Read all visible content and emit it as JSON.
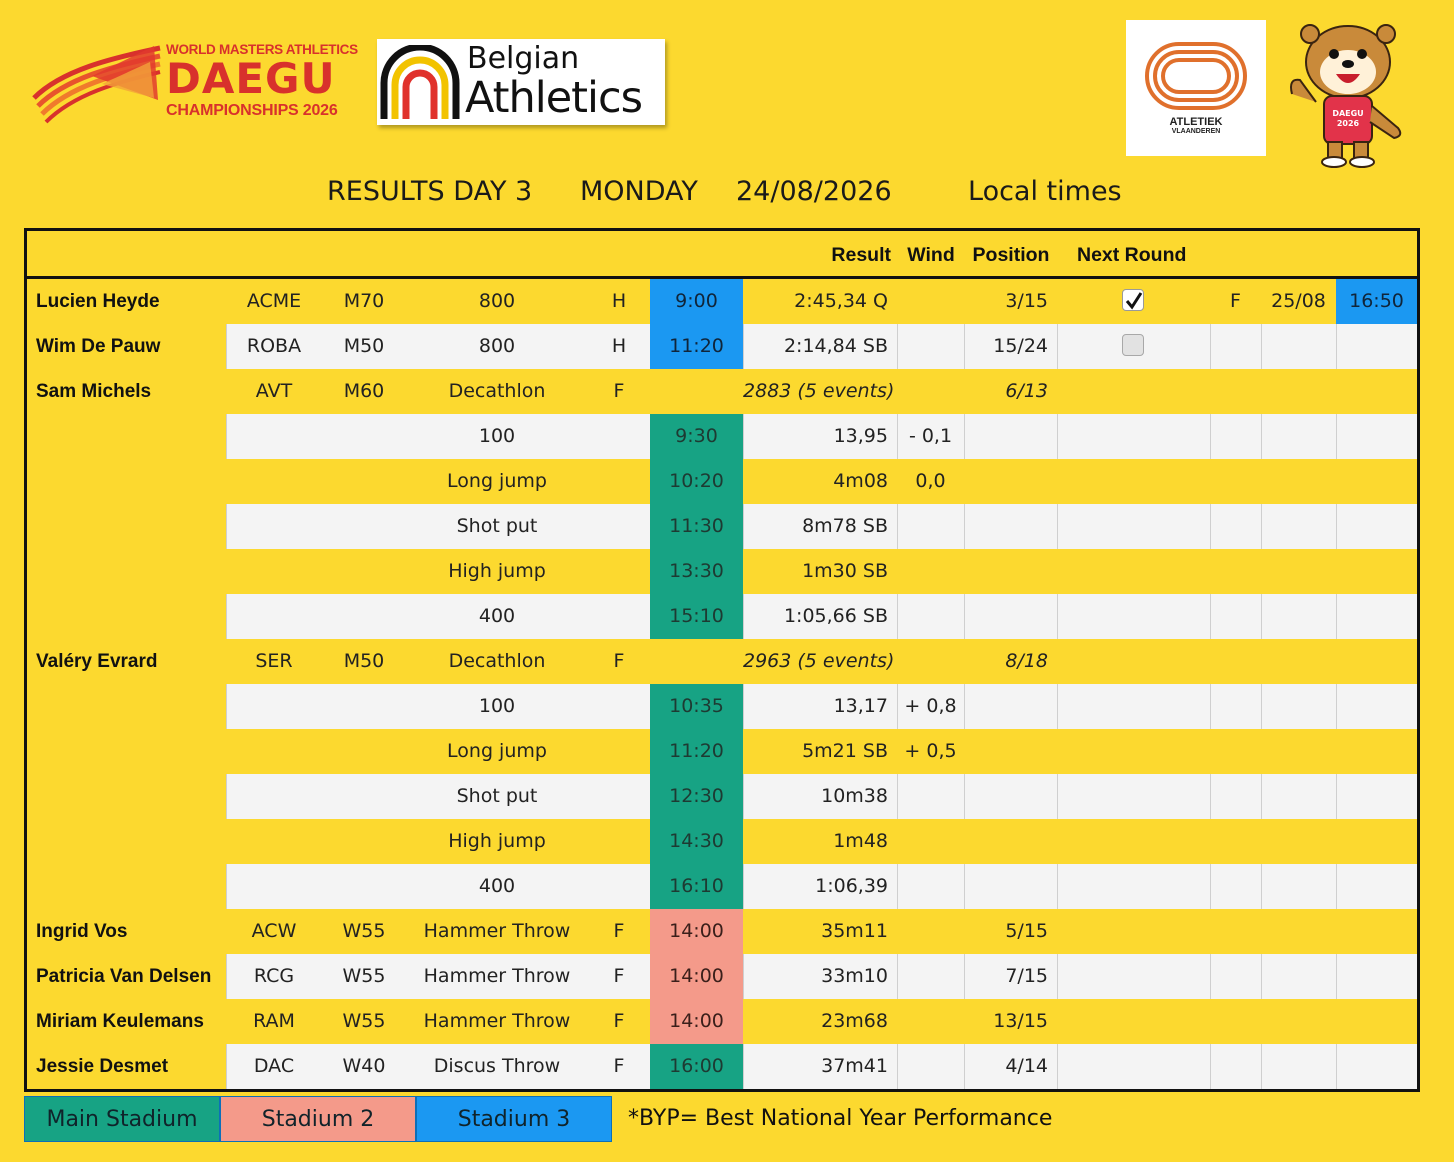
{
  "logos": {
    "daegu": {
      "line1": "WORLD MASTERS ATHLETICS",
      "line2": "DAEGU",
      "line3": "CHAMPIONSHIPS 2026",
      "icon": "daegu-track-icon"
    },
    "belgian": {
      "line1": "Belgian",
      "line2": "Athletics",
      "icon": "belgian-athletics-icon"
    },
    "flanders": {
      "line1": "ATLETIEK",
      "line2": "VLAANDEREN",
      "icon": "track-oval-icon"
    },
    "mascot": {
      "shirt_line1": "DAEGU",
      "shirt_line2": "2026",
      "icon": "otter-mascot-icon"
    }
  },
  "title": {
    "results": "RESULTS DAY 3",
    "weekday": "MONDAY",
    "date": "24/08/2026",
    "note": "Local times"
  },
  "headers": {
    "result": "Result",
    "wind": "Wind",
    "position": "Position",
    "next_round": "Next Round"
  },
  "colors": {
    "main_stadium": "#17a384",
    "stadium_2": "#f49a8a",
    "stadium_3": "#1b98f2",
    "background": "#fcd92f"
  },
  "rows": [
    {
      "name": "Lucien Heyde",
      "club": "ACME",
      "cat": "M70",
      "event": "800",
      "round": "H",
      "time": "9:00",
      "venue": "stadium3",
      "result": "2:45,34 Q",
      "wind": "",
      "position": "3/15",
      "check": "checked",
      "next_round": "F",
      "next_date": "25/08",
      "next_time": "16:50",
      "light": false
    },
    {
      "name": "Wim De Pauw",
      "club": "ROBA",
      "cat": "M50",
      "event": "800",
      "round": "H",
      "time": "11:20",
      "venue": "stadium3",
      "result": "2:14,84 SB",
      "wind": "",
      "position": "15/24",
      "check": "unchecked",
      "next_round": "",
      "next_date": "",
      "next_time": "",
      "light": true
    },
    {
      "name": "Sam Michels",
      "club": "AVT",
      "cat": "M60",
      "event": "Decathlon",
      "round": "F",
      "time": "",
      "venue": "",
      "result": "2883 (5 events)",
      "wind": "",
      "position": "6/13",
      "italic": true,
      "light": false
    },
    {
      "name": "",
      "club": "",
      "cat": "",
      "event": "100",
      "round": "",
      "time": "9:30",
      "venue": "main",
      "result": "13,95",
      "wind": "- 0,1",
      "position": "",
      "light": true
    },
    {
      "name": "",
      "club": "",
      "cat": "",
      "event": "Long jump",
      "round": "",
      "time": "10:20",
      "venue": "main",
      "result": "4m08",
      "wind": "0,0",
      "position": "",
      "light": false
    },
    {
      "name": "",
      "club": "",
      "cat": "",
      "event": "Shot put",
      "round": "",
      "time": "11:30",
      "venue": "main",
      "result": "8m78 SB",
      "wind": "",
      "position": "",
      "light": true
    },
    {
      "name": "",
      "club": "",
      "cat": "",
      "event": "High jump",
      "round": "",
      "time": "13:30",
      "venue": "main",
      "result": "1m30 SB",
      "wind": "",
      "position": "",
      "light": false
    },
    {
      "name": "",
      "club": "",
      "cat": "",
      "event": "400",
      "round": "",
      "time": "15:10",
      "venue": "main",
      "result": "1:05,66 SB",
      "wind": "",
      "position": "",
      "light": true
    },
    {
      "name": "Valéry Evrard",
      "club": "SER",
      "cat": "M50",
      "event": "Decathlon",
      "round": "F",
      "time": "",
      "venue": "",
      "result": "2963 (5 events)",
      "wind": "",
      "position": "8/18",
      "italic": true,
      "light": false
    },
    {
      "name": "",
      "club": "",
      "cat": "",
      "event": "100",
      "round": "",
      "time": "10:35",
      "venue": "main",
      "result": "13,17",
      "wind": "+ 0,8",
      "position": "",
      "light": true
    },
    {
      "name": "",
      "club": "",
      "cat": "",
      "event": "Long jump",
      "round": "",
      "time": "11:20",
      "venue": "main",
      "result": "5m21 SB",
      "wind": "+ 0,5",
      "position": "",
      "light": false
    },
    {
      "name": "",
      "club": "",
      "cat": "",
      "event": "Shot put",
      "round": "",
      "time": "12:30",
      "venue": "main",
      "result": "10m38",
      "wind": "",
      "position": "",
      "light": true
    },
    {
      "name": "",
      "club": "",
      "cat": "",
      "event": "High jump",
      "round": "",
      "time": "14:30",
      "venue": "main",
      "result": "1m48",
      "wind": "",
      "position": "",
      "light": false
    },
    {
      "name": "",
      "club": "",
      "cat": "",
      "event": "400",
      "round": "",
      "time": "16:10",
      "venue": "main",
      "result": "1:06,39",
      "wind": "",
      "position": "",
      "light": true
    },
    {
      "name": "Ingrid Vos",
      "club": "ACW",
      "cat": "W55",
      "event": "Hammer Throw",
      "round": "F",
      "time": "14:00",
      "venue": "stadium2",
      "result": "35m11",
      "wind": "",
      "position": "5/15",
      "light": false
    },
    {
      "name": "Patricia Van Delsen",
      "club": "RCG",
      "cat": "W55",
      "event": "Hammer Throw",
      "round": "F",
      "time": "14:00",
      "venue": "stadium2",
      "result": "33m10",
      "wind": "",
      "position": "7/15",
      "light": true
    },
    {
      "name": "Miriam Keulemans",
      "club": "RAM",
      "cat": "W55",
      "event": "Hammer Throw",
      "round": "F",
      "time": "14:00",
      "venue": "stadium2",
      "result": "23m68",
      "wind": "",
      "position": "13/15",
      "light": false
    },
    {
      "name": "Jessie Desmet",
      "club": "DAC",
      "cat": "W40",
      "event": "Discus Throw",
      "round": "F",
      "time": "16:00",
      "venue": "main",
      "result": "37m41",
      "wind": "",
      "position": "4/14",
      "light": true
    }
  ],
  "legend": {
    "main": "Main Stadium",
    "stadium2": "Stadium 2",
    "stadium3": "Stadium 3",
    "note": "*BYP= Best National Year Performance"
  }
}
